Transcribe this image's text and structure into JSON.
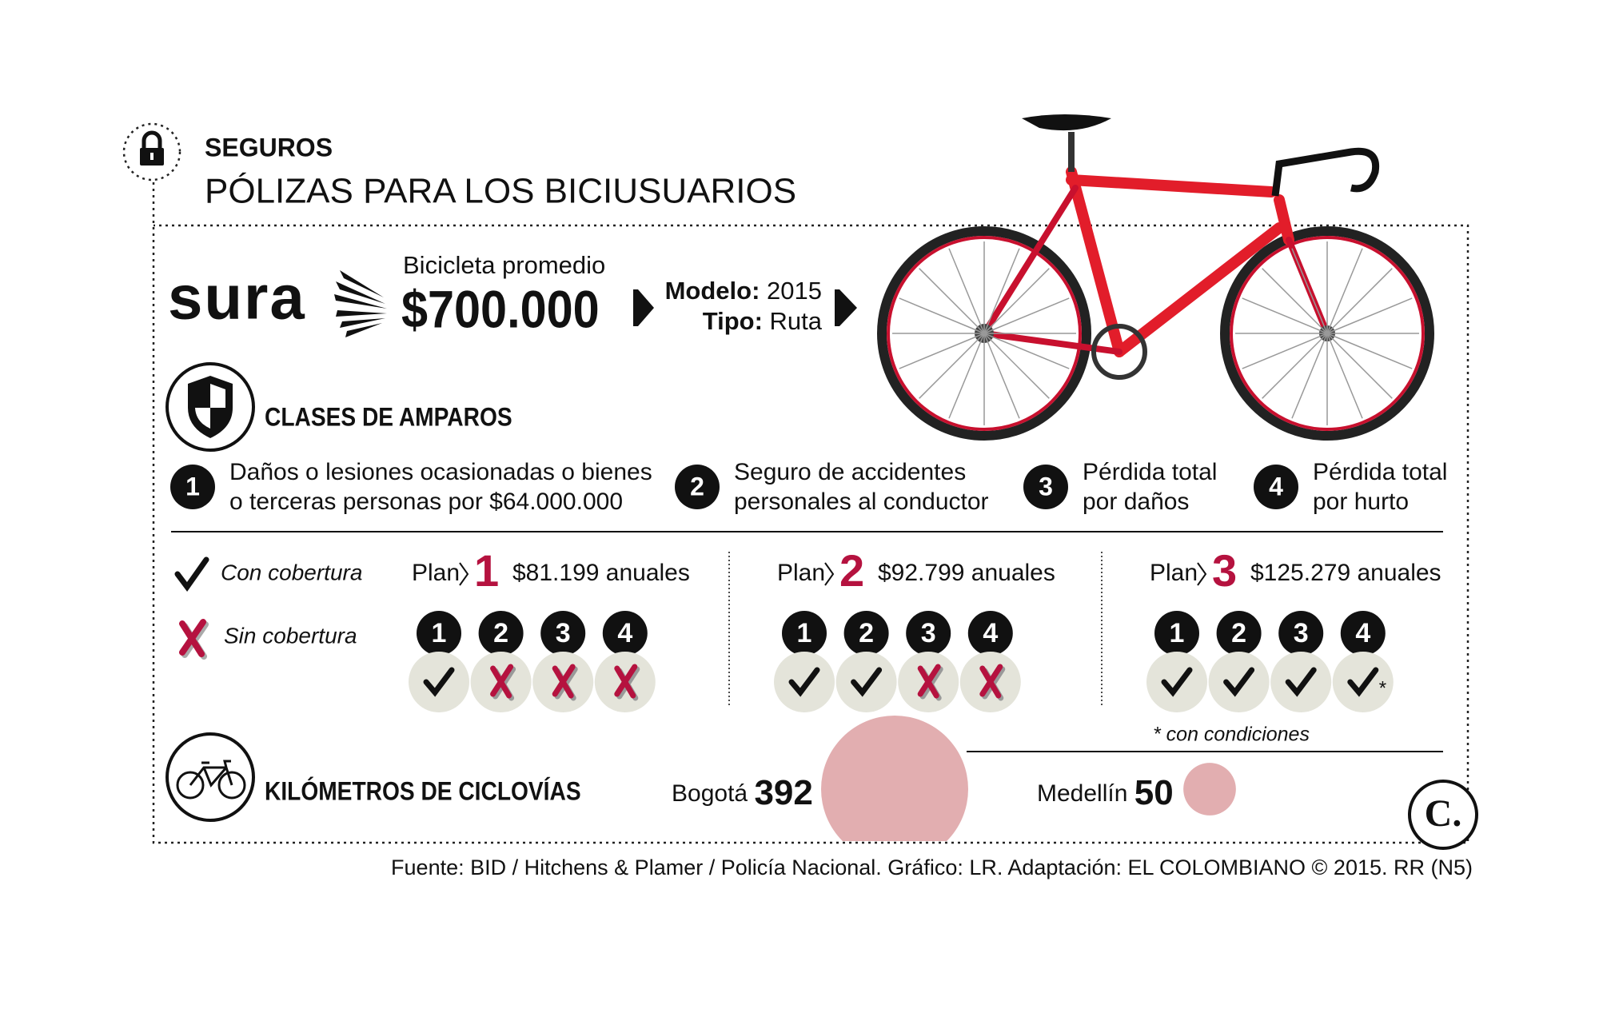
{
  "header": {
    "kicker": "SEGUROS",
    "title": "PÓLIZAS PARA LOS BICIUSUARIOS"
  },
  "brand": "sura",
  "bike": {
    "label": "Bicicleta promedio",
    "price": "$700.000",
    "model_label": "Modelo:",
    "model": "2015",
    "type_label": "Tipo:",
    "type": "Ruta"
  },
  "amparos": {
    "title": "CLASES DE AMPAROS",
    "items": [
      {
        "number": "1",
        "lines": [
          "Daños o lesiones ocasionadas o bienes",
          "o terceras personas por $64.000.000"
        ]
      },
      {
        "number": "2",
        "lines": [
          "Seguro de accidentes",
          "personales al conductor"
        ]
      },
      {
        "number": "3",
        "lines": [
          "Pérdida total",
          "por daños"
        ]
      },
      {
        "number": "4",
        "lines": [
          "Pérdida total",
          "por hurto"
        ]
      }
    ]
  },
  "legend": {
    "covered": "Con cobertura",
    "not_covered": "Sin cobertura"
  },
  "plans": [
    {
      "label": "Plan",
      "number": "1",
      "price": "$81.199 anuales",
      "items": [
        "1",
        "2",
        "3",
        "4"
      ],
      "coverage": [
        {
          "covered": true
        },
        {
          "covered": false
        },
        {
          "covered": false
        },
        {
          "covered": false
        }
      ]
    },
    {
      "label": "Plan",
      "number": "2",
      "price": "$92.799 anuales",
      "items": [
        "1",
        "2",
        "3",
        "4"
      ],
      "coverage": [
        {
          "covered": true
        },
        {
          "covered": true
        },
        {
          "covered": false
        },
        {
          "covered": false
        }
      ]
    },
    {
      "label": "Plan",
      "number": "3",
      "price": "$125.279 anuales",
      "items": [
        "1",
        "2",
        "3",
        "4"
      ],
      "coverage": [
        {
          "covered": true
        },
        {
          "covered": true
        },
        {
          "covered": true
        },
        {
          "covered": true,
          "mark": "*"
        }
      ]
    }
  ],
  "note": "* con condiciones",
  "ciclovias": {
    "title": "KILÓMETROS DE CICLOVÍAS",
    "color": "#e2aeb0",
    "cities": [
      {
        "name": "Bogotá",
        "km": 392
      },
      {
        "name": "Medellín",
        "km": 50
      }
    ]
  },
  "logo": "C.",
  "source": "Fuente: BID / Hitchens & Plamer / Policía Nacional. Gráfico: LR. Adaptación: EL COLOMBIANO © 2015. RR (N5)"
}
